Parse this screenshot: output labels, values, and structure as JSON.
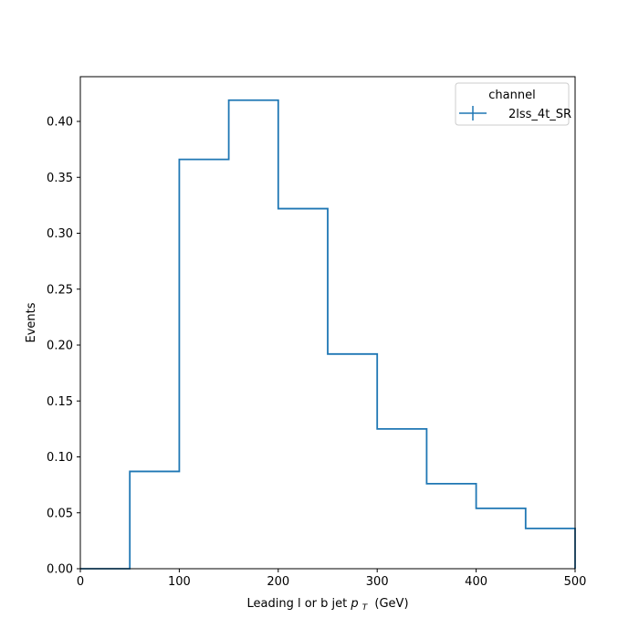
{
  "chart_data": {
    "type": "histogram-step",
    "xlabel": "Leading l or b jet",
    "xlabel_math_symbol": "p",
    "xlabel_math_subscript": "T",
    "xlabel_unit": "(GeV)",
    "ylabel": "Events",
    "xlim": [
      0,
      500
    ],
    "ylim": [
      0,
      0.44
    ],
    "xticks": [
      0,
      100,
      200,
      300,
      400,
      500
    ],
    "xtick_labels": [
      "0",
      "100",
      "200",
      "300",
      "400",
      "500"
    ],
    "yticks": [
      0.0,
      0.05,
      0.1,
      0.15,
      0.2,
      0.25,
      0.3,
      0.35,
      0.4
    ],
    "ytick_labels": [
      "0.00",
      "0.05",
      "0.10",
      "0.15",
      "0.20",
      "0.25",
      "0.30",
      "0.35",
      "0.40"
    ],
    "bin_edges": [
      0,
      50,
      100,
      150,
      200,
      250,
      300,
      350,
      400,
      450,
      500
    ],
    "series": [
      {
        "name": "2lss_4t_SR",
        "color": "#1f77b4",
        "values": [
          0.0,
          0.087,
          0.366,
          0.419,
          0.322,
          0.192,
          0.125,
          0.076,
          0.054,
          0.036
        ]
      }
    ],
    "legend": {
      "title": "channel",
      "placement": "top-right"
    },
    "grid": false
  }
}
